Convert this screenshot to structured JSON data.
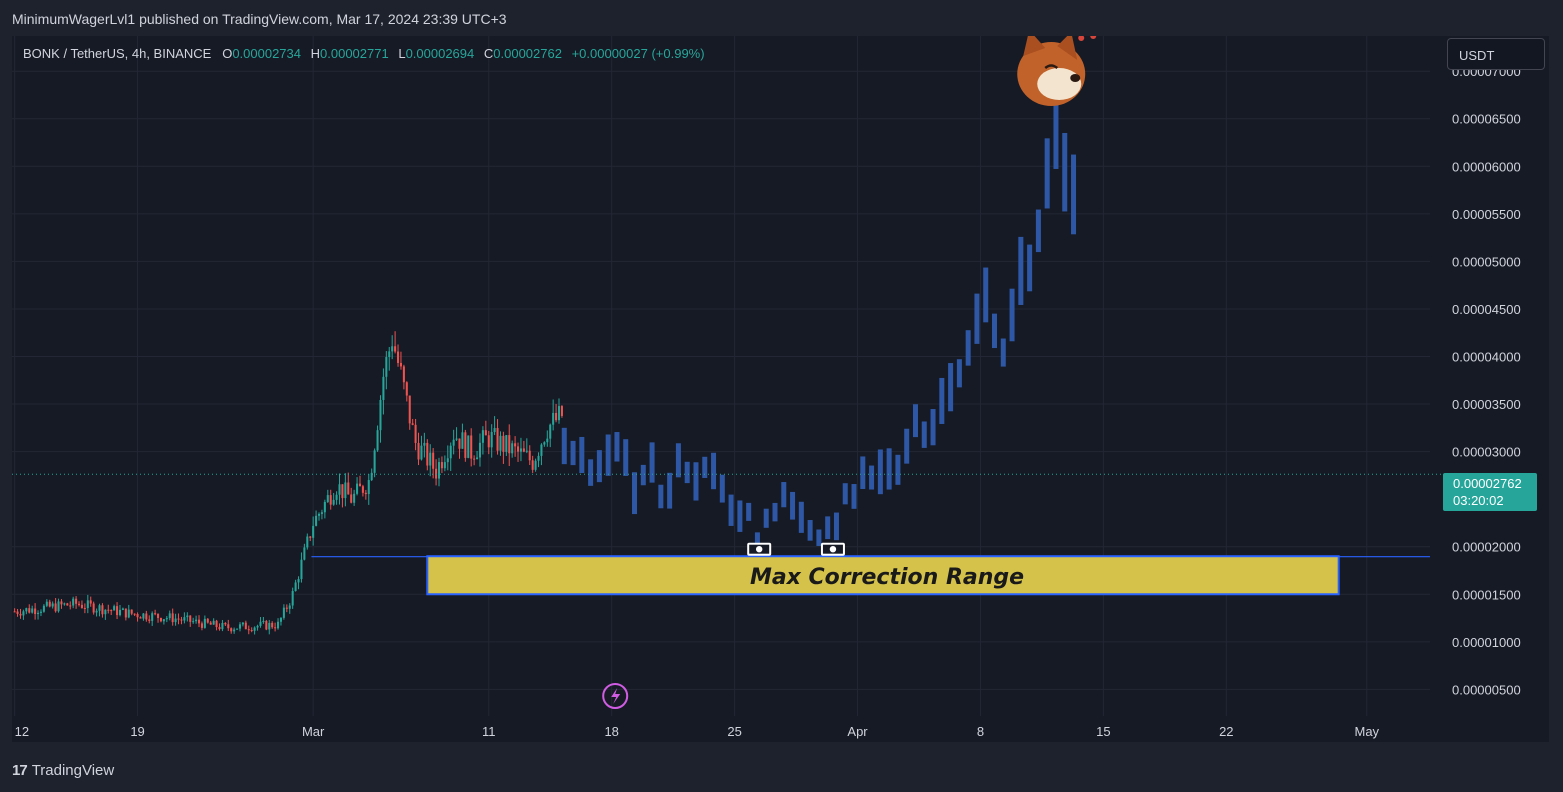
{
  "header": {
    "publish_text": "MinimumWagerLvl1 published on TradingView.com, Mar 17, 2024 23:39 UTC+3"
  },
  "legend": {
    "symbol": "BONK / TetherUS, 4h, BINANCE",
    "o_label": "O",
    "o_value": "0.00002734",
    "h_label": "H",
    "h_value": "0.00002771",
    "l_label": "L",
    "l_value": "0.00002694",
    "c_label": "C",
    "c_value": "0.00002762",
    "change": "+0.00000027 (+0.99%)"
  },
  "currency_button": "USDT",
  "price_tag": {
    "price": "0.00002762",
    "countdown": "03:20:02"
  },
  "annotation": {
    "range_label": "Max Correction Range"
  },
  "footer": {
    "brand": "TradingView",
    "brand_mark": "17"
  },
  "colors": {
    "background": "#161a25",
    "up_candle": "#26a69a",
    "down_candle": "#ef5350",
    "projection": "#2e58a6",
    "range_fill": "#d4c24a",
    "range_border": "#2962ff",
    "icon_accent": "#d05ce3"
  },
  "icons": [
    "lightning-icon",
    "shiba-dog-icon",
    "cash-icon"
  ],
  "chart_data": {
    "type": "candlestick",
    "interval": "4h",
    "y_axis": {
      "ticks": [
        "0.00000500",
        "0.00001000",
        "0.00001500",
        "0.00002000",
        "0.00003000",
        "0.00003500",
        "0.00004000",
        "0.00004500",
        "0.00005000",
        "0.00005500",
        "0.00006000",
        "0.00006500",
        "0.00007000"
      ],
      "tick_values": [
        5e-06,
        1e-05,
        1.5e-05,
        2e-05,
        3e-05,
        3.5e-05,
        4e-05,
        4.5e-05,
        5e-05,
        5.5e-05,
        6e-05,
        6.5e-05,
        7e-05
      ],
      "range": [
        2.2e-06,
        7.37e-05
      ]
    },
    "x_axis": {
      "labels": [
        "12",
        "19",
        "Mar",
        "11",
        "18",
        "25",
        "Apr",
        "8",
        "15",
        "22",
        "May"
      ],
      "label_day_index": [
        0,
        7,
        17,
        27,
        34,
        41,
        48,
        55,
        62,
        69,
        77
      ],
      "range_days": [
        -0.15,
        80.6
      ]
    },
    "current_price": 2.762e-05,
    "support_line": 1.895e-05,
    "max_correction_range": {
      "from_day": 23.5,
      "to_day": 75.4,
      "low": 1.5e-05,
      "high": 1.9e-05
    },
    "historical_anchors": [
      [
        0,
        1.32e-05
      ],
      [
        3.5,
        1.4e-05
      ],
      [
        6.5,
        1.3e-05
      ],
      [
        9,
        1.25e-05
      ],
      [
        12,
        1.15e-05
      ],
      [
        15,
        1.18e-05
      ],
      [
        15.8,
        1.48e-05
      ],
      [
        17,
        2.25e-05
      ],
      [
        18.3,
        2.65e-05
      ],
      [
        19.2,
        2.5e-05
      ],
      [
        20.2,
        2.7e-05
      ],
      [
        21,
        3.8e-05
      ],
      [
        21.5,
        4.2e-05
      ],
      [
        22,
        3.8e-05
      ],
      [
        22.8,
        3.1e-05
      ],
      [
        24,
        2.8e-05
      ],
      [
        25,
        3.2e-05
      ],
      [
        26,
        3e-05
      ],
      [
        27,
        3.15e-05
      ],
      [
        28.5,
        3e-05
      ],
      [
        29.5,
        2.9e-05
      ],
      [
        30.3,
        3.25e-05
      ],
      [
        31.3,
        3.4e-05
      ]
    ],
    "projection_anchors": [
      [
        31.3,
        3e-05
      ],
      [
        33,
        2.7e-05
      ],
      [
        34.2,
        2.95e-05
      ],
      [
        35.5,
        2.75e-05
      ],
      [
        37,
        2.62e-05
      ],
      [
        38.5,
        2.88e-05
      ],
      [
        40,
        2.65e-05
      ],
      [
        41.5,
        2.4e-05
      ],
      [
        42.3,
        2.15e-05
      ],
      [
        43.5,
        2.45e-05
      ],
      [
        44.5,
        2.42e-05
      ],
      [
        45.8,
        2.15e-05
      ],
      [
        47,
        2.4e-05
      ],
      [
        48.3,
        2.65e-05
      ],
      [
        49.5,
        3.05e-05
      ],
      [
        50.5,
        2.9e-05
      ],
      [
        51.5,
        3.25e-05
      ],
      [
        52.5,
        3.3e-05
      ],
      [
        53.5,
        3.65e-05
      ],
      [
        54.5,
        4e-05
      ],
      [
        55.3,
        4.4e-05
      ],
      [
        56.2,
        4e-05
      ],
      [
        57,
        4.7e-05
      ],
      [
        57.8,
        5.1e-05
      ],
      [
        58.6,
        5.6e-05
      ],
      [
        59.3,
        6.2e-05
      ],
      [
        59.7,
        6.4e-05
      ],
      [
        60.2,
        5.6e-05
      ],
      [
        60.6,
        6e-05
      ]
    ],
    "markers": [
      {
        "type": "cash",
        "day": 42.4
      },
      {
        "type": "cash",
        "day": 46.6
      }
    ]
  }
}
